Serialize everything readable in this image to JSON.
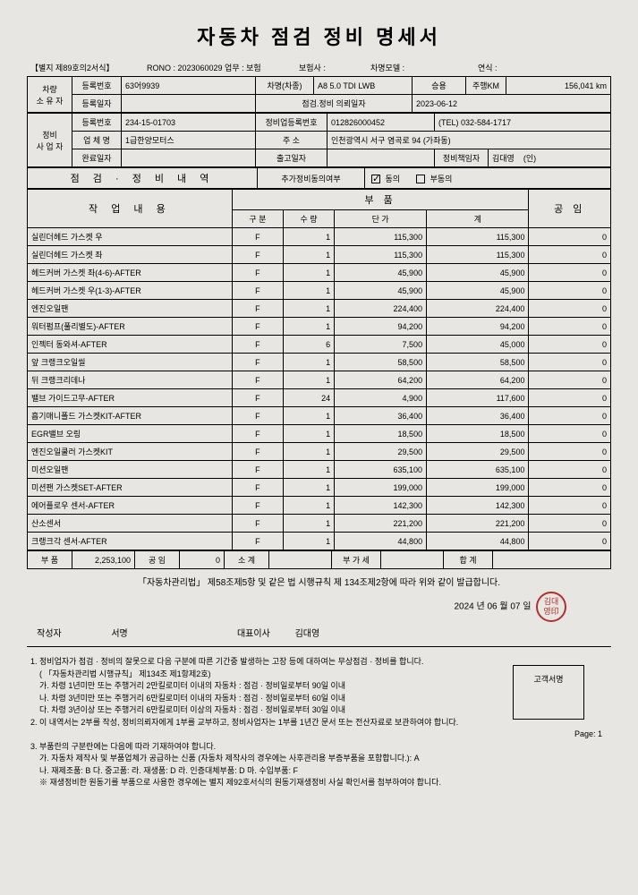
{
  "title": "자동차 점검 정비 명세서",
  "form_no": "【별지 제89호의2서식】",
  "rono": "RONO : 2023060029 업무 : 보험",
  "ins_label": "보험사 :",
  "model_label": "차명모델 :",
  "year_label": "연식 :",
  "owner": {
    "side": "차량\n소 유 자",
    "reg_no_label": "등록번호",
    "reg_no": "63어9939",
    "car_name_label": "차명(차종)",
    "car_name": "A8 5.0 TDI LWB",
    "type": "승용",
    "km_label": "주행KM",
    "km": "156,041 km",
    "reg_date_label": "등록일자",
    "req_date_label": "점검.정비 의뢰일자",
    "req_date": "2023-06-12"
  },
  "shop": {
    "side": "정비\n사 업 자",
    "reg_no_label": "등록번호",
    "reg_no": "234-15-01703",
    "biz_reg_label": "정비업등록번호",
    "biz_reg": "012826000452",
    "tel": "(TEL)  032-584-1717",
    "name_label": "업 체 명",
    "name": "1급한양모터스",
    "addr_label": "주     소",
    "addr": "인천광역시 서구 염곡로 94 (가좌동)",
    "done_date_label": "완료일자",
    "out_date_label": "출고일자",
    "mgr_label": "정비책임자",
    "mgr": "김대영",
    "seal": "(인)"
  },
  "consent": {
    "section": "점 검  ·  정 비 내 역",
    "label": "추가정비동의여부",
    "agree": "동의",
    "disagree": "부동의"
  },
  "cols": {
    "work": "작  업  내  용",
    "parts": "부        품",
    "labor": "공    임",
    "cls": "구  분",
    "qty": "수 량",
    "unit": "단  가",
    "sum": "계"
  },
  "rows": [
    {
      "n": "실린더헤드 가스켓 우",
      "c": "F",
      "q": "1",
      "u": "115,300",
      "s": "115,300",
      "l": "0"
    },
    {
      "n": "실린더헤드 가스켓 좌",
      "c": "F",
      "q": "1",
      "u": "115,300",
      "s": "115,300",
      "l": "0"
    },
    {
      "n": "헤드커버 가스켓 좌(4-6)-AFTER",
      "c": "F",
      "q": "1",
      "u": "45,900",
      "s": "45,900",
      "l": "0"
    },
    {
      "n": "헤드커버 가스켓 우(1-3)-AFTER",
      "c": "F",
      "q": "1",
      "u": "45,900",
      "s": "45,900",
      "l": "0"
    },
    {
      "n": "엔진오일팬",
      "c": "F",
      "q": "1",
      "u": "224,400",
      "s": "224,400",
      "l": "0"
    },
    {
      "n": "워터펌프(풀리별도)-AFTER",
      "c": "F",
      "q": "1",
      "u": "94,200",
      "s": "94,200",
      "l": "0"
    },
    {
      "n": "인젝터 동와셔-AFTER",
      "c": "F",
      "q": "6",
      "u": "7,500",
      "s": "45,000",
      "l": "0"
    },
    {
      "n": "앞 크랭크오일씰",
      "c": "F",
      "q": "1",
      "u": "58,500",
      "s": "58,500",
      "l": "0"
    },
    {
      "n": "뒤 크랭크리데나",
      "c": "F",
      "q": "1",
      "u": "64,200",
      "s": "64,200",
      "l": "0"
    },
    {
      "n": "밸브 가이드고무-AFTER",
      "c": "F",
      "q": "24",
      "u": "4,900",
      "s": "117,600",
      "l": "0"
    },
    {
      "n": "흡기매니폴드 가스켓KIT-AFTER",
      "c": "F",
      "q": "1",
      "u": "36,400",
      "s": "36,400",
      "l": "0"
    },
    {
      "n": "EGR밸브 오링",
      "c": "F",
      "q": "1",
      "u": "18,500",
      "s": "18,500",
      "l": "0"
    },
    {
      "n": "엔진오일쿨러 가스켓KIT",
      "c": "F",
      "q": "1",
      "u": "29,500",
      "s": "29,500",
      "l": "0"
    },
    {
      "n": "미션오일팬",
      "c": "F",
      "q": "1",
      "u": "635,100",
      "s": "635,100",
      "l": "0"
    },
    {
      "n": "미션팬 가스켓SET-AFTER",
      "c": "F",
      "q": "1",
      "u": "199,000",
      "s": "199,000",
      "l": "0"
    },
    {
      "n": "에어플로우 센서-AFTER",
      "c": "F",
      "q": "1",
      "u": "142,300",
      "s": "142,300",
      "l": "0"
    },
    {
      "n": "산소센서",
      "c": "F",
      "q": "1",
      "u": "221,200",
      "s": "221,200",
      "l": "0"
    },
    {
      "n": "크랭크각 센서-AFTER",
      "c": "F",
      "q": "1",
      "u": "44,800",
      "s": "44,800",
      "l": "0"
    }
  ],
  "totals": {
    "parts_label": "부  품",
    "parts": "2,253,100",
    "labor_label": "공  임",
    "labor": "0",
    "subtotal_label": "소  계",
    "vat_label": "부 가 세",
    "total_label": "합    계"
  },
  "legal": "「자동차관리법」 제58조제5항 및 같은 법 시행규칙 제 134조제2항에 따라 위와 같이 발급합니다.",
  "date": "2024 년    06 월   07 일",
  "author_label": "작성자",
  "sign_label": "서명",
  "ceo_label": "대표이사",
  "ceo": "김대영",
  "notes": {
    "n1": "1. 정비업자가 점검 · 정비의 잘못으로 다음 구분에 따른 기간중 발생하는 고장 등에 대하여는 무상점검 · 정비를 합니다.",
    "n1a": "( 「자동차관리법 시행규칙」 제134조 제1항제2호)",
    "n1b": "가. 차령 1년미만 또는 주행거리 2만킬로미터 이내의 자동차 : 점검 · 정비일로부터 90일 이내",
    "n1c": "나. 차령 3년미만 또는 주행거리 6만킬로미터 이내의 자동차 : 점검 · 정비일로부터 60일 이내",
    "n1d": "다. 차령 3년이상 또는 주행거리 6만킬로미터 이상의 자동차 : 점검 · 정비일로부터 30일 이내",
    "n2": "2. 이 내역서는 2부를 작성, 정비의뢰자에게 1부를 교부하고, 정비사업자는 1부를 1년간 문서 또는 전산자료로 보관하여야 합니다.",
    "n3": "3. 부품란의 구분란에는 다음에 따라 기재하여야 합니다.",
    "n3a": "가. 자동차 제작사 및 부품업체가 공급하는 신품 (자동차 제작사의 경우에는 사후관리용 부증부품을 포함합니다.): A",
    "n3b": "나. 재제조품: B        다. 중고품:        라. 재생품: D        라. 인증대체부품: D             마. 수입부품: F",
    "n3c": "※ 재생정비한 원동기를 부품으로 사용한 경우에는 별지 제92호서식의 원동기재생정비 사실 확인서를 첨부하여야 합니다.",
    "cust_sign": "고객서명",
    "page": "Page:      1"
  }
}
